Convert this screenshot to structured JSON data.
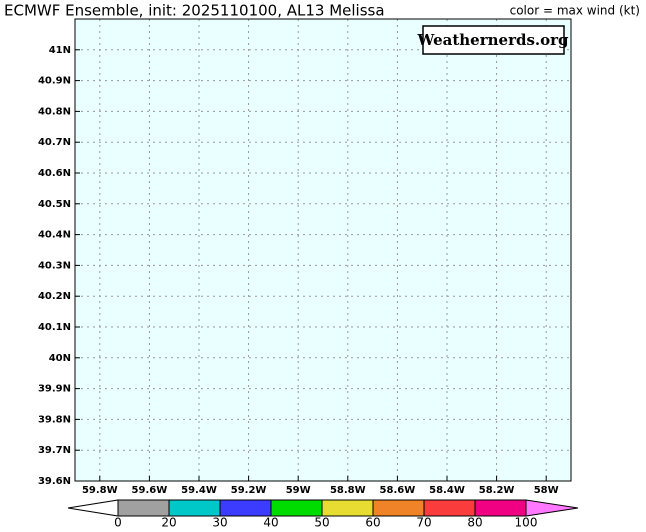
{
  "chart_data": {
    "type": "map",
    "title": "ECMWF Ensemble, init: 2025110100, AL13 Melissa",
    "subtitle": "color = max wind (kt)",
    "watermark": "Weathernerds.org",
    "background": "#eaffff",
    "grid": true,
    "xlim": [
      -59.9,
      -57.9
    ],
    "ylim": [
      39.6,
      41.1
    ],
    "xticks": [
      {
        "value": -59.8,
        "label": "59.8W"
      },
      {
        "value": -59.6,
        "label": "59.6W"
      },
      {
        "value": -59.4,
        "label": "59.4W"
      },
      {
        "value": -59.2,
        "label": "59.2W"
      },
      {
        "value": -59.0,
        "label": "59W"
      },
      {
        "value": -58.8,
        "label": "58.8W"
      },
      {
        "value": -58.6,
        "label": "58.6W"
      },
      {
        "value": -58.4,
        "label": "58.4W"
      },
      {
        "value": -58.2,
        "label": "58.2W"
      },
      {
        "value": -58.0,
        "label": "58W"
      }
    ],
    "yticks": [
      {
        "value": 39.6,
        "label": "39.6N"
      },
      {
        "value": 39.7,
        "label": "39.7N"
      },
      {
        "value": 39.8,
        "label": "39.8N"
      },
      {
        "value": 39.9,
        "label": "39.9N"
      },
      {
        "value": 40.0,
        "label": "40N"
      },
      {
        "value": 40.1,
        "label": "40.1N"
      },
      {
        "value": 40.2,
        "label": "40.2N"
      },
      {
        "value": 40.3,
        "label": "40.3N"
      },
      {
        "value": 40.4,
        "label": "40.4N"
      },
      {
        "value": 40.5,
        "label": "40.5N"
      },
      {
        "value": 40.6,
        "label": "40.6N"
      },
      {
        "value": 40.7,
        "label": "40.7N"
      },
      {
        "value": 40.8,
        "label": "40.8N"
      },
      {
        "value": 40.9,
        "label": "40.9N"
      },
      {
        "value": 41.0,
        "label": "41N"
      }
    ],
    "colorbar": {
      "bounds": [
        0,
        20,
        30,
        40,
        50,
        60,
        70,
        80,
        100
      ],
      "colors": [
        "#ffffff",
        "#a0a0a0",
        "#00c8c8",
        "#3c3cff",
        "#00dc00",
        "#e6dc32",
        "#f08228",
        "#fa3c3c",
        "#f00082",
        "#ff78ff"
      ]
    }
  }
}
